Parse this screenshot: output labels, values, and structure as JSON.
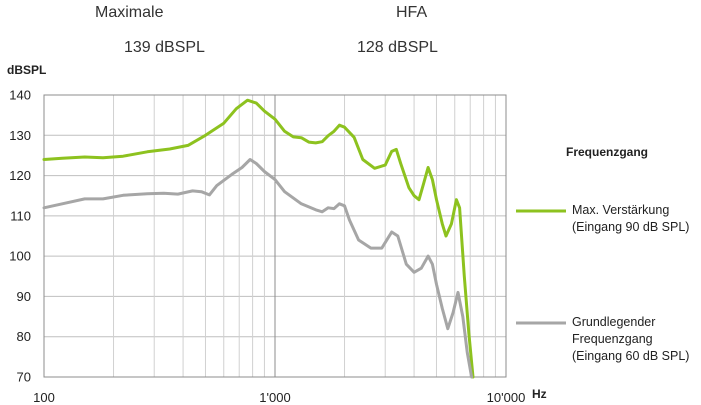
{
  "header": {
    "maximale_label": "Maximale",
    "maximale_value": "139 dBSPL",
    "hfa_label": "HFA",
    "hfa_value": "128 dBSPL"
  },
  "chart_data": {
    "type": "line",
    "ylabel": "dBSPL",
    "xlabel": "Hz",
    "xscale": "log",
    "xlim": [
      100,
      10000
    ],
    "ylim": [
      70,
      140
    ],
    "y_ticks": [
      70,
      80,
      90,
      100,
      110,
      120,
      130,
      140
    ],
    "x_ticks": [
      {
        "value": 100,
        "label": "100"
      },
      {
        "value": 1000,
        "label": "1'000"
      },
      {
        "value": 10000,
        "label": "10'000"
      }
    ],
    "grid": true,
    "legend_title": "Frequenzgang",
    "legend_position": "right",
    "series": [
      {
        "name": "Max. Verstärkung (Eingang 90 dB SPL)",
        "label_lines": [
          "Max. Verstärkung",
          "(Eingang 90 dB SPL)"
        ],
        "color": "#8dc21f",
        "points": [
          [
            100,
            124
          ],
          [
            120,
            124.3
          ],
          [
            150,
            124.6
          ],
          [
            180,
            124.4
          ],
          [
            220,
            124.8
          ],
          [
            280,
            125.9
          ],
          [
            350,
            126.6
          ],
          [
            420,
            127.5
          ],
          [
            500,
            130
          ],
          [
            600,
            133
          ],
          [
            680,
            136.6
          ],
          [
            760,
            138.7
          ],
          [
            830,
            138
          ],
          [
            900,
            136
          ],
          [
            1000,
            134
          ],
          [
            1100,
            131
          ],
          [
            1200,
            129.6
          ],
          [
            1300,
            129.4
          ],
          [
            1400,
            128.3
          ],
          [
            1500,
            128.1
          ],
          [
            1600,
            128.4
          ],
          [
            1700,
            129.9
          ],
          [
            1800,
            131
          ],
          [
            1900,
            132.5
          ],
          [
            2000,
            132
          ],
          [
            2200,
            129.5
          ],
          [
            2400,
            124
          ],
          [
            2700,
            121.8
          ],
          [
            3000,
            122.6
          ],
          [
            3200,
            126
          ],
          [
            3350,
            126.5
          ],
          [
            3500,
            123
          ],
          [
            3800,
            117
          ],
          [
            4000,
            115
          ],
          [
            4200,
            114
          ],
          [
            4400,
            118
          ],
          [
            4600,
            122
          ],
          [
            4800,
            119
          ],
          [
            5000,
            114
          ],
          [
            5300,
            108
          ],
          [
            5500,
            105
          ],
          [
            5800,
            108
          ],
          [
            6100,
            114
          ],
          [
            6300,
            112
          ],
          [
            6600,
            95
          ],
          [
            6900,
            81
          ],
          [
            7200,
            70
          ]
        ]
      },
      {
        "name": "Grundlegender Frequenzgang (Eingang 60 dB SPL)",
        "label_lines": [
          "Grundlegender",
          "Frequenzgang",
          "(Eingang 60 dB SPL)"
        ],
        "color": "#a6a6a6",
        "points": [
          [
            100,
            112
          ],
          [
            120,
            113
          ],
          [
            150,
            114.2
          ],
          [
            180,
            114.2
          ],
          [
            220,
            115.1
          ],
          [
            280,
            115.5
          ],
          [
            330,
            115.6
          ],
          [
            380,
            115.4
          ],
          [
            440,
            116.2
          ],
          [
            480,
            116
          ],
          [
            520,
            115.2
          ],
          [
            560,
            117.5
          ],
          [
            650,
            120.3
          ],
          [
            720,
            122
          ],
          [
            780,
            124
          ],
          [
            830,
            123
          ],
          [
            900,
            121
          ],
          [
            1000,
            119
          ],
          [
            1100,
            116
          ],
          [
            1300,
            113
          ],
          [
            1500,
            111.5
          ],
          [
            1600,
            111
          ],
          [
            1700,
            112
          ],
          [
            1800,
            111.8
          ],
          [
            1900,
            113
          ],
          [
            2000,
            112.5
          ],
          [
            2100,
            109
          ],
          [
            2300,
            104
          ],
          [
            2600,
            102
          ],
          [
            2900,
            102
          ],
          [
            3200,
            106
          ],
          [
            3400,
            105
          ],
          [
            3700,
            98
          ],
          [
            4000,
            96
          ],
          [
            4300,
            97
          ],
          [
            4600,
            100
          ],
          [
            4800,
            98
          ],
          [
            5000,
            93
          ],
          [
            5300,
            87
          ],
          [
            5600,
            82
          ],
          [
            5900,
            86
          ],
          [
            6200,
            91
          ],
          [
            6500,
            85
          ],
          [
            6800,
            76
          ],
          [
            7100,
            70
          ]
        ]
      }
    ]
  }
}
